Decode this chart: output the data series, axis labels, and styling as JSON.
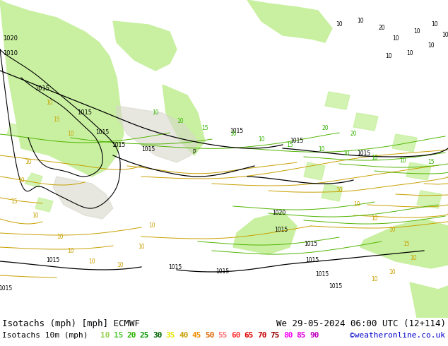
{
  "title_line1": "Isotachs (mph) [mph] ECMWF",
  "title_line2": "We 29-05-2024 06:00 UTC (12+114)",
  "label_left": "Isotachs 10m (mph)",
  "copyright": "©weatheronline.co.uk",
  "legend_values": [
    10,
    15,
    20,
    25,
    30,
    35,
    40,
    45,
    50,
    55,
    60,
    65,
    70,
    75,
    80,
    85,
    90
  ],
  "legend_colors": [
    "#96d050",
    "#50c832",
    "#28b400",
    "#009600",
    "#006400",
    "#e6e600",
    "#c8a000",
    "#f08c00",
    "#dc6400",
    "#ff7878",
    "#ff3232",
    "#e00000",
    "#c80000",
    "#960000",
    "#ff00ff",
    "#e000e0",
    "#c000c0"
  ],
  "bg_color": "#ffffff",
  "map_bg": "#f5f5f0",
  "land_green_light": "#c8f0a0",
  "land_green_mid": "#a0e878",
  "sea_color": "#e8e8f0",
  "title_font_size": 9,
  "legend_font_size": 8,
  "text_color": "#000000",
  "copyright_color": "#0000cc"
}
